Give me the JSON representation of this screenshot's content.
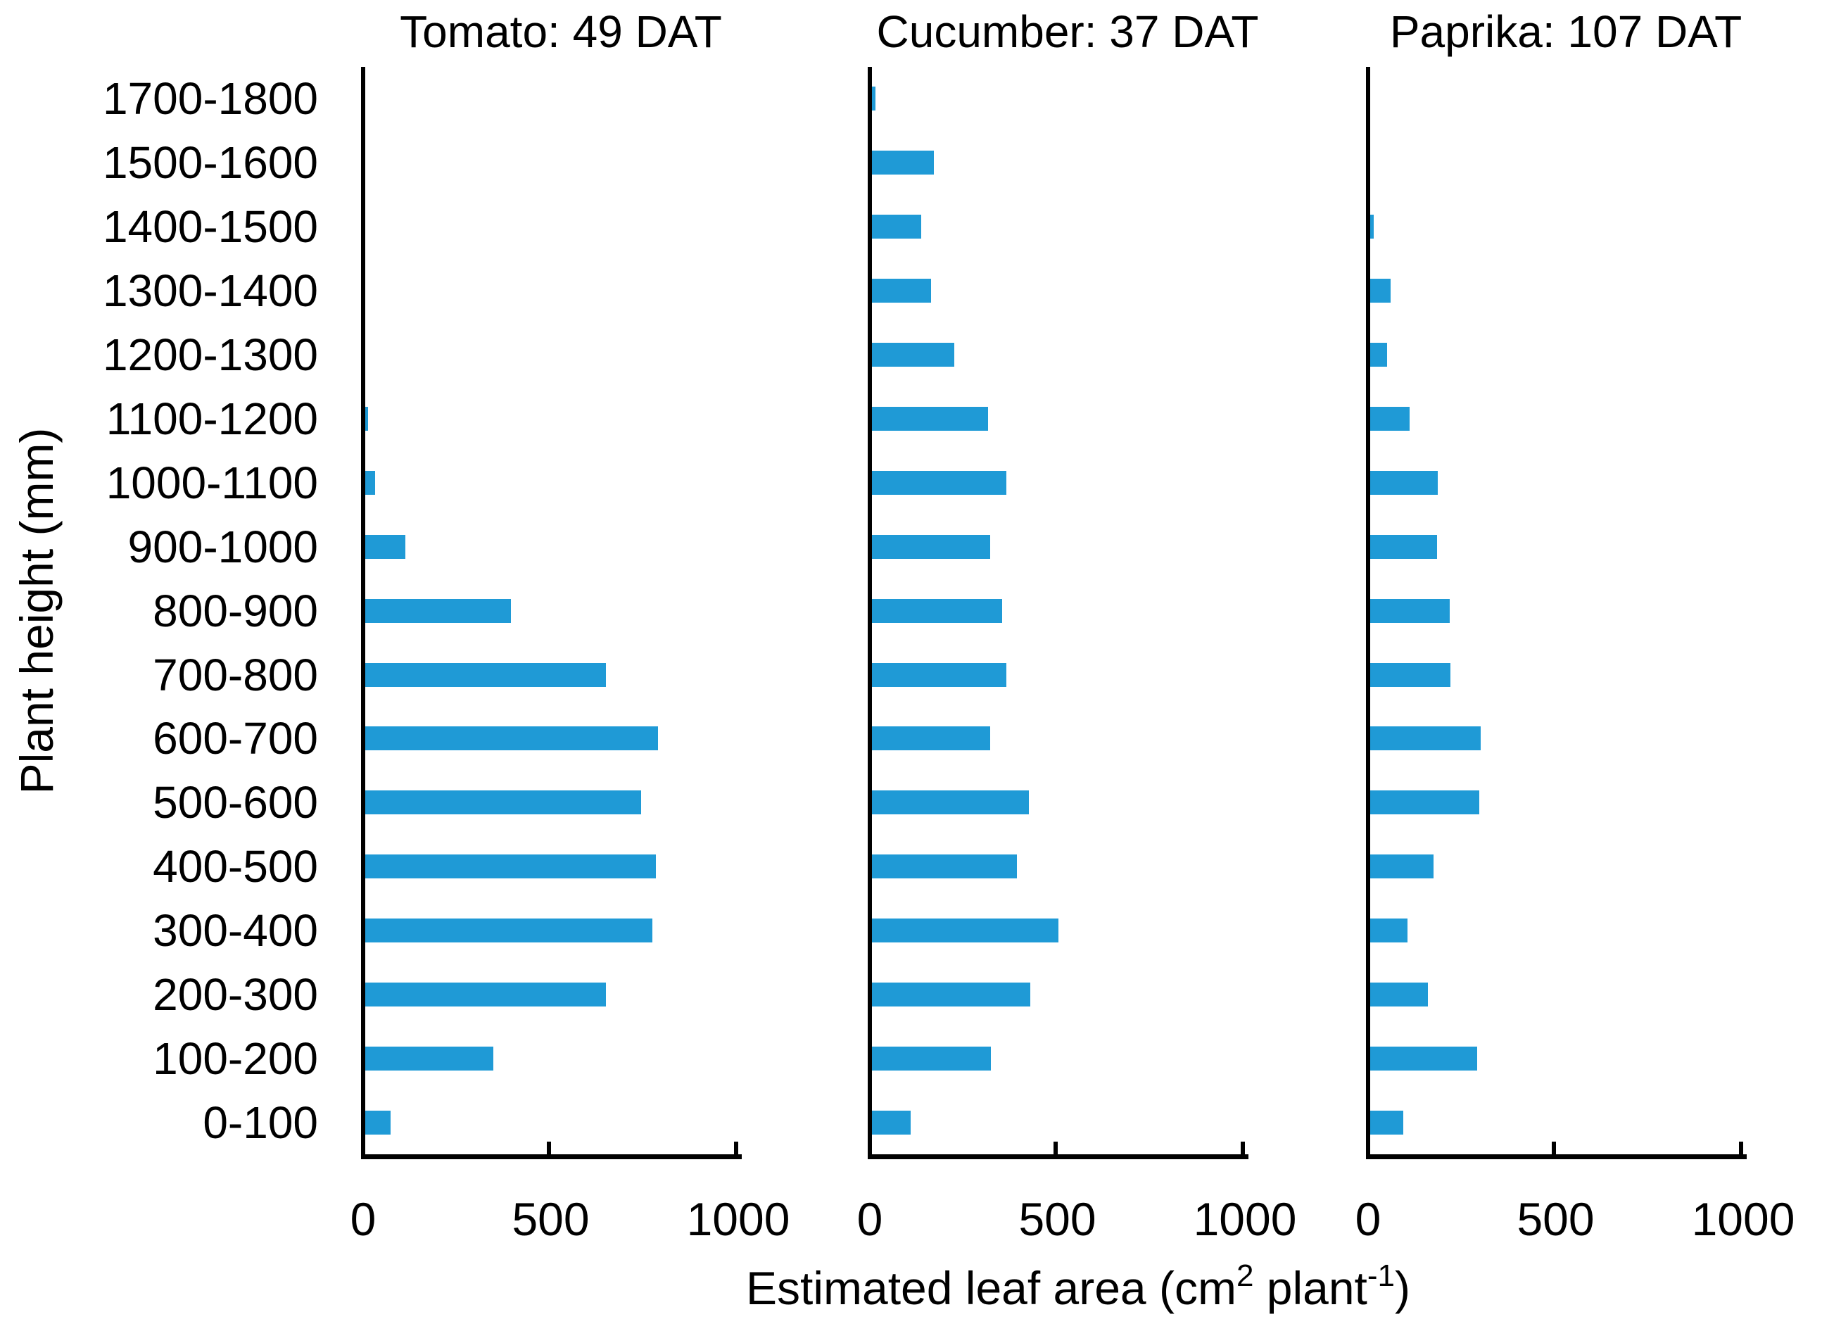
{
  "chart_data": {
    "type": "bar",
    "orientation": "horizontal",
    "title": "",
    "ylabel": "Plant height (mm)",
    "xlabel": "Estimated leaf area (cm2 plant-1)",
    "xlabel_parts": {
      "pre": "Estimated leaf area (cm",
      "sup1": "2",
      "mid": " plant",
      "sup2": "-1",
      "post": ")"
    },
    "categories": [
      "1700-1800",
      "1500-1600",
      "1400-1500",
      "1300-1400",
      "1200-1300",
      "1100-1200",
      "1000-1100",
      "900-1000",
      "800-900",
      "700-800",
      "600-700",
      "500-600",
      "400-500",
      "300-400",
      "200-300",
      "100-200",
      "0-100"
    ],
    "series": [
      {
        "name": "Tomato: 49 DAT",
        "values": [
          0,
          0,
          0,
          0,
          0,
          8,
          27,
          107,
          388,
          642,
          780,
          735,
          775,
          766,
          642,
          341,
          68
        ]
      },
      {
        "name": "Cucumber: 37 DAT",
        "values": [
          10,
          166,
          132,
          158,
          220,
          310,
          358,
          316,
          347,
          358,
          316,
          418,
          387,
          498,
          422,
          317,
          104
        ]
      },
      {
        "name": "Paprika: 107 DAT",
        "values": [
          0,
          0,
          10,
          54,
          45,
          105,
          181,
          178,
          212,
          214,
          294,
          290,
          168,
          100,
          154,
          286,
          88
        ]
      }
    ],
    "x_ticks": [
      0,
      500,
      1000
    ],
    "xlim": [
      0,
      1015
    ],
    "grid": false,
    "legend": "none",
    "bar_color": "#1F9AD6",
    "axis_color": "#000000"
  }
}
